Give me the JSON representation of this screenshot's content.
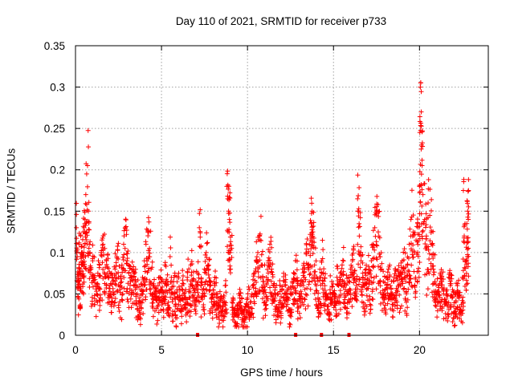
{
  "chart_data": {
    "type": "scatter",
    "title": "Day 110 of 2021, SRMTID for receiver p733",
    "xlabel": "GPS time / hours",
    "ylabel": "SRMTID / TECUs",
    "xlim": [
      0,
      24
    ],
    "ylim": [
      0,
      0.35
    ],
    "grid": true,
    "legend": "none",
    "x_ticks": [
      "0",
      "5",
      "10",
      "15",
      "20"
    ],
    "x_tick_values": [
      0,
      5,
      10,
      15,
      20
    ],
    "y_ticks": [
      "0",
      "0.05",
      "0.1",
      "0.15",
      "0.2",
      "0.25",
      "0.3",
      "0.35"
    ],
    "y_tick_values": [
      0,
      0.05,
      0.1,
      0.15,
      0.2,
      0.25,
      0.3,
      0.35
    ],
    "marker": "+",
    "color": "#ff0000",
    "series": [
      {
        "name": "SRMTID",
        "points": [
          [
            0.05,
            0.13
          ],
          [
            0.1,
            0.095
          ],
          [
            0.15,
            0.065
          ],
          [
            0.2,
            0.11
          ],
          [
            0.25,
            0.075
          ],
          [
            0.3,
            0.12
          ],
          [
            0.35,
            0.085
          ],
          [
            0.4,
            0.1
          ],
          [
            0.45,
            0.125
          ],
          [
            0.5,
            0.13
          ],
          [
            0.55,
            0.14
          ],
          [
            0.6,
            0.17
          ],
          [
            0.65,
            0.195
          ],
          [
            0.7,
            0.205
          ],
          [
            0.75,
            0.15
          ],
          [
            0.8,
            0.11
          ],
          [
            0.9,
            0.08
          ],
          [
            1.0,
            0.09
          ],
          [
            1.1,
            0.07
          ],
          [
            1.2,
            0.06
          ],
          [
            1.3,
            0.075
          ],
          [
            1.4,
            0.085
          ],
          [
            1.5,
            0.1
          ],
          [
            1.6,
            0.11
          ],
          [
            1.7,
            0.105
          ],
          [
            1.8,
            0.09
          ],
          [
            1.9,
            0.07
          ],
          [
            2.0,
            0.06
          ],
          [
            2.1,
            0.075
          ],
          [
            2.2,
            0.065
          ],
          [
            2.3,
            0.08
          ],
          [
            2.4,
            0.095
          ],
          [
            2.5,
            0.07
          ],
          [
            2.6,
            0.06
          ],
          [
            2.7,
            0.085
          ],
          [
            2.8,
            0.11
          ],
          [
            2.9,
            0.13
          ],
          [
            3.0,
            0.09
          ],
          [
            3.1,
            0.075
          ],
          [
            3.2,
            0.065
          ],
          [
            3.3,
            0.08
          ],
          [
            3.4,
            0.07
          ],
          [
            3.5,
            0.06
          ],
          [
            3.6,
            0.05
          ],
          [
            3.7,
            0.045
          ],
          [
            3.8,
            0.055
          ],
          [
            3.9,
            0.07
          ],
          [
            4.0,
            0.09
          ],
          [
            4.1,
            0.11
          ],
          [
            4.2,
            0.125
          ],
          [
            4.3,
            0.105
          ],
          [
            4.4,
            0.08
          ],
          [
            4.5,
            0.06
          ],
          [
            4.6,
            0.05
          ],
          [
            4.7,
            0.045
          ],
          [
            4.8,
            0.06
          ],
          [
            4.9,
            0.07
          ],
          [
            5.0,
            0.055
          ],
          [
            5.1,
            0.045
          ],
          [
            5.2,
            0.085
          ],
          [
            5.3,
            0.06
          ],
          [
            5.4,
            0.04
          ],
          [
            5.5,
            0.095
          ],
          [
            5.6,
            0.05
          ],
          [
            5.7,
            0.065
          ],
          [
            5.8,
            0.035
          ],
          [
            5.9,
            0.055
          ],
          [
            6.0,
            0.075
          ],
          [
            6.1,
            0.045
          ],
          [
            6.2,
            0.06
          ],
          [
            6.3,
            0.05
          ],
          [
            6.4,
            0.04
          ],
          [
            6.5,
            0.07
          ],
          [
            6.6,
            0.055
          ],
          [
            6.7,
            0.085
          ],
          [
            6.8,
            0.06
          ],
          [
            6.9,
            0.045
          ],
          [
            7.0,
            0.065
          ],
          [
            7.1,
            0.075
          ],
          [
            7.2,
            0.13
          ],
          [
            7.3,
            0.06
          ],
          [
            7.4,
            0.05
          ],
          [
            7.5,
            0.08
          ],
          [
            7.6,
            0.1
          ],
          [
            7.7,
            0.085
          ],
          [
            7.8,
            0.06
          ],
          [
            7.9,
            0.045
          ],
          [
            8.0,
            0.055
          ],
          [
            8.1,
            0.07
          ],
          [
            8.2,
            0.05
          ],
          [
            8.3,
            0.035
          ],
          [
            8.4,
            0.04
          ],
          [
            8.5,
            0.03
          ],
          [
            8.6,
            0.045
          ],
          [
            8.7,
            0.06
          ],
          [
            8.8,
            0.18
          ],
          [
            8.85,
            0.165
          ],
          [
            8.9,
            0.15
          ],
          [
            8.95,
            0.14
          ],
          [
            9.0,
            0.1
          ],
          [
            9.1,
            0.04
          ],
          [
            9.2,
            0.03
          ],
          [
            9.3,
            0.025
          ],
          [
            9.4,
            0.035
          ],
          [
            9.5,
            0.05
          ],
          [
            9.6,
            0.04
          ],
          [
            9.7,
            0.03
          ],
          [
            9.8,
            0.025
          ],
          [
            9.9,
            0.035
          ],
          [
            10.0,
            0.045
          ],
          [
            10.1,
            0.03
          ],
          [
            10.2,
            0.04
          ],
          [
            10.3,
            0.06
          ],
          [
            10.4,
            0.075
          ],
          [
            10.5,
            0.09
          ],
          [
            10.6,
            0.1
          ],
          [
            10.7,
            0.12
          ],
          [
            10.8,
            0.085
          ],
          [
            10.9,
            0.065
          ],
          [
            11.0,
            0.055
          ],
          [
            11.1,
            0.07
          ],
          [
            11.2,
            0.09
          ],
          [
            11.3,
            0.11
          ],
          [
            11.4,
            0.08
          ],
          [
            11.5,
            0.06
          ],
          [
            11.6,
            0.045
          ],
          [
            11.7,
            0.035
          ],
          [
            11.8,
            0.05
          ],
          [
            11.9,
            0.04
          ],
          [
            12.0,
            0.055
          ],
          [
            12.1,
            0.075
          ],
          [
            12.2,
            0.06
          ],
          [
            12.3,
            0.045
          ],
          [
            12.4,
            0.03
          ],
          [
            12.5,
            0.05
          ],
          [
            12.6,
            0.065
          ],
          [
            12.7,
            0.075
          ],
          [
            12.8,
            0.09
          ],
          [
            12.9,
            0.06
          ],
          [
            13.0,
            0.05
          ],
          [
            13.1,
            0.065
          ],
          [
            13.2,
            0.08
          ],
          [
            13.3,
            0.07
          ],
          [
            13.4,
            0.1
          ],
          [
            13.5,
            0.085
          ],
          [
            13.6,
            0.11
          ],
          [
            13.7,
            0.135
          ],
          [
            13.75,
            0.15
          ],
          [
            13.8,
            0.125
          ],
          [
            13.9,
            0.085
          ],
          [
            14.0,
            0.06
          ],
          [
            14.1,
            0.045
          ],
          [
            14.2,
            0.07
          ],
          [
            14.3,
            0.09
          ],
          [
            14.4,
            0.075
          ],
          [
            14.5,
            0.06
          ],
          [
            14.6,
            0.045
          ],
          [
            14.7,
            0.035
          ],
          [
            14.8,
            0.055
          ],
          [
            14.9,
            0.065
          ],
          [
            15.0,
            0.05
          ],
          [
            15.1,
            0.04
          ],
          [
            15.2,
            0.07
          ],
          [
            15.3,
            0.06
          ],
          [
            15.4,
            0.075
          ],
          [
            15.5,
            0.085
          ],
          [
            15.6,
            0.065
          ],
          [
            15.7,
            0.055
          ],
          [
            15.8,
            0.05
          ],
          [
            15.9,
            0.07
          ],
          [
            16.0,
            0.08
          ],
          [
            16.1,
            0.09
          ],
          [
            16.2,
            0.075
          ],
          [
            16.3,
            0.065
          ],
          [
            16.4,
            0.165
          ],
          [
            16.45,
            0.15
          ],
          [
            16.5,
            0.12
          ],
          [
            16.6,
            0.09
          ],
          [
            16.7,
            0.07
          ],
          [
            16.8,
            0.06
          ],
          [
            16.9,
            0.08
          ],
          [
            17.0,
            0.075
          ],
          [
            17.1,
            0.065
          ],
          [
            17.2,
            0.09
          ],
          [
            17.3,
            0.11
          ],
          [
            17.4,
            0.13
          ],
          [
            17.5,
            0.15
          ],
          [
            17.6,
            0.125
          ],
          [
            17.7,
            0.095
          ],
          [
            17.8,
            0.08
          ],
          [
            17.9,
            0.065
          ],
          [
            18.0,
            0.055
          ],
          [
            18.1,
            0.07
          ],
          [
            18.2,
            0.08
          ],
          [
            18.3,
            0.06
          ],
          [
            18.4,
            0.05
          ],
          [
            18.5,
            0.065
          ],
          [
            18.6,
            0.08
          ],
          [
            18.7,
            0.07
          ],
          [
            18.8,
            0.06
          ],
          [
            18.9,
            0.075
          ],
          [
            19.0,
            0.09
          ],
          [
            19.1,
            0.08
          ],
          [
            19.2,
            0.065
          ],
          [
            19.3,
            0.085
          ],
          [
            19.4,
            0.11
          ],
          [
            19.5,
            0.14
          ],
          [
            19.6,
            0.12
          ],
          [
            19.7,
            0.1
          ],
          [
            19.8,
            0.115
          ],
          [
            19.9,
            0.135
          ],
          [
            20.0,
            0.18
          ],
          [
            20.02,
            0.245
          ],
          [
            20.05,
            0.3
          ],
          [
            20.07,
            0.305
          ],
          [
            20.1,
            0.27
          ],
          [
            20.12,
            0.23
          ],
          [
            20.15,
            0.205
          ],
          [
            20.2,
            0.17
          ],
          [
            20.3,
            0.14
          ],
          [
            20.4,
            0.12
          ],
          [
            20.5,
            0.16
          ],
          [
            20.6,
            0.145
          ],
          [
            20.7,
            0.11
          ],
          [
            20.8,
            0.08
          ],
          [
            20.9,
            0.065
          ],
          [
            21.0,
            0.05
          ],
          [
            21.1,
            0.06
          ],
          [
            21.2,
            0.075
          ],
          [
            21.3,
            0.065
          ],
          [
            21.4,
            0.05
          ],
          [
            21.5,
            0.04
          ],
          [
            21.6,
            0.055
          ],
          [
            21.7,
            0.07
          ],
          [
            21.8,
            0.06
          ],
          [
            21.9,
            0.045
          ],
          [
            22.0,
            0.035
          ],
          [
            22.1,
            0.05
          ],
          [
            22.2,
            0.06
          ],
          [
            22.3,
            0.045
          ],
          [
            22.4,
            0.03
          ],
          [
            22.5,
            0.07
          ],
          [
            22.55,
            0.175
          ],
          [
            22.6,
            0.12
          ],
          [
            22.7,
            0.09
          ],
          [
            22.75,
            0.135
          ],
          [
            22.8,
            0.15
          ],
          [
            22.85,
            0.175
          ]
        ]
      }
    ],
    "x_axis_markers": [
      7.1,
      12.8,
      14.3,
      15.9
    ]
  }
}
